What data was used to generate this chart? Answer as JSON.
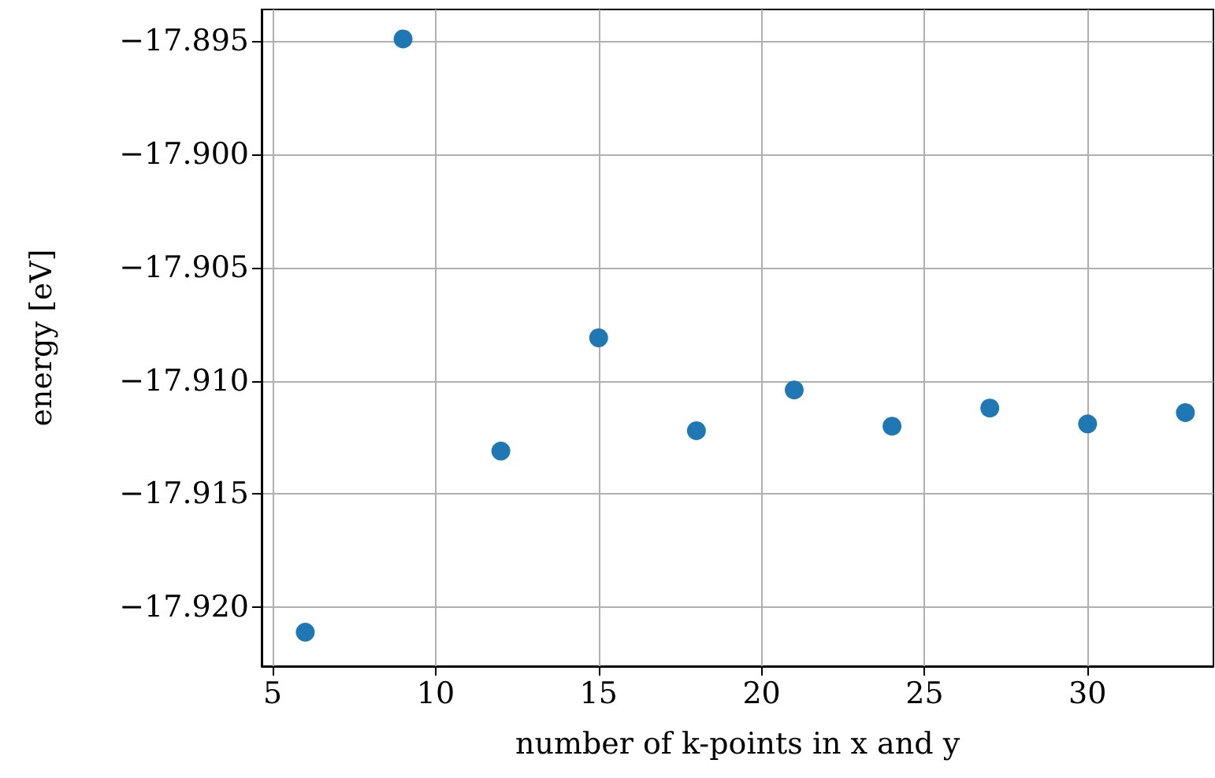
{
  "chart_data": {
    "type": "scatter",
    "xlabel": "number of k-points in x and y",
    "ylabel": "energy [eV]",
    "x": [
      6,
      9,
      12,
      15,
      18,
      21,
      24,
      27,
      30,
      33
    ],
    "series": [
      {
        "color": "#1f77b4",
        "values": [
          -17.9211,
          -17.8949,
          -17.9131,
          -17.9081,
          -17.9122,
          -17.9104,
          -17.912,
          -17.9112,
          -17.9119,
          -17.9114
        ]
      }
    ],
    "xlim": [
      4.66,
      33.86
    ],
    "ylim": [
      -17.9226,
      -17.8936
    ],
    "xticks": [
      5,
      10,
      15,
      20,
      25,
      30
    ],
    "yticks": [
      {
        "value": -17.92,
        "label": "−17.920"
      },
      {
        "value": -17.915,
        "label": "−17.915"
      },
      {
        "value": -17.91,
        "label": "−17.910"
      },
      {
        "value": -17.905,
        "label": "−17.905"
      },
      {
        "value": -17.9,
        "label": "−17.900"
      },
      {
        "value": -17.895,
        "label": "−17.895"
      }
    ],
    "grid": true,
    "marker": "circle"
  }
}
